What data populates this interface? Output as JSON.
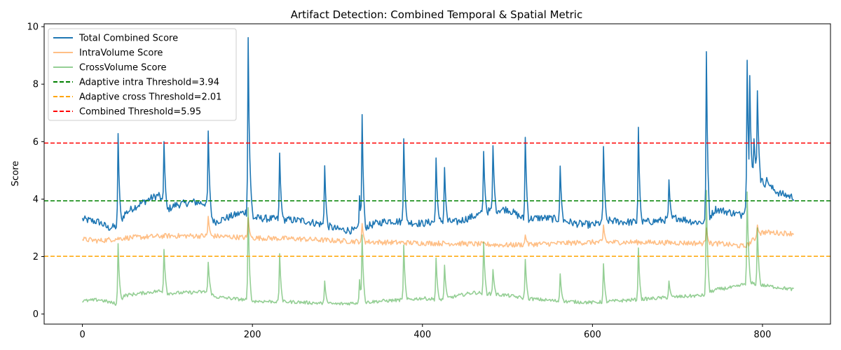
{
  "chart_data": {
    "type": "line",
    "title": "Artifact Detection: Combined Temporal & Spatial Metric",
    "xlabel": "",
    "ylabel": "Score",
    "xlim": [
      -45,
      880
    ],
    "ylim": [
      -0.35,
      10.1
    ],
    "xticks": [
      0,
      200,
      400,
      600,
      800
    ],
    "yticks": [
      0,
      2,
      4,
      6,
      8,
      10
    ],
    "n_points": 838,
    "legend_position": "top-left",
    "series": [
      {
        "name": "Total Combined Score",
        "color": "#1f77b4",
        "opacity": 1.0,
        "baseline_knots": [
          [
            0,
            3.3
          ],
          [
            20,
            3.2
          ],
          [
            30,
            3.0
          ],
          [
            42,
            3.05
          ],
          [
            50,
            3.5
          ],
          [
            60,
            3.7
          ],
          [
            75,
            3.95
          ],
          [
            90,
            4.15
          ],
          [
            98,
            3.6
          ],
          [
            110,
            3.8
          ],
          [
            130,
            3.9
          ],
          [
            145,
            3.85
          ],
          [
            155,
            3.2
          ],
          [
            170,
            3.35
          ],
          [
            185,
            3.5
          ],
          [
            192,
            3.55
          ],
          [
            200,
            3.35
          ],
          [
            230,
            3.3
          ],
          [
            260,
            3.25
          ],
          [
            285,
            3.1
          ],
          [
            300,
            2.95
          ],
          [
            320,
            2.9
          ],
          [
            330,
            3.0
          ],
          [
            345,
            3.15
          ],
          [
            360,
            3.25
          ],
          [
            380,
            3.2
          ],
          [
            400,
            3.15
          ],
          [
            420,
            3.25
          ],
          [
            440,
            3.2
          ],
          [
            460,
            3.4
          ],
          [
            470,
            3.5
          ],
          [
            480,
            3.6
          ],
          [
            500,
            3.65
          ],
          [
            520,
            3.3
          ],
          [
            540,
            3.35
          ],
          [
            560,
            3.3
          ],
          [
            580,
            3.15
          ],
          [
            600,
            3.1
          ],
          [
            620,
            3.25
          ],
          [
            640,
            3.2
          ],
          [
            660,
            3.2
          ],
          [
            680,
            3.25
          ],
          [
            700,
            3.35
          ],
          [
            720,
            3.2
          ],
          [
            733,
            3.2
          ],
          [
            745,
            3.65
          ],
          [
            760,
            3.55
          ],
          [
            775,
            3.45
          ],
          [
            783,
            3.9
          ],
          [
            790,
            5.0
          ],
          [
            800,
            4.6
          ],
          [
            810,
            4.4
          ],
          [
            820,
            4.2
          ],
          [
            838,
            4.05
          ]
        ],
        "noise": 0.13,
        "spikes": [
          [
            42,
            6.28
          ],
          [
            96,
            6.0
          ],
          [
            148,
            6.37
          ],
          [
            195,
            9.62
          ],
          [
            197,
            5.4
          ],
          [
            232,
            5.6
          ],
          [
            285,
            5.16
          ],
          [
            326,
            4.12
          ],
          [
            329,
            6.94
          ],
          [
            378,
            6.1
          ],
          [
            416,
            5.43
          ],
          [
            426,
            5.1
          ],
          [
            472,
            5.66
          ],
          [
            483,
            5.86
          ],
          [
            521,
            6.15
          ],
          [
            562,
            5.15
          ],
          [
            613,
            5.83
          ],
          [
            654,
            6.5
          ],
          [
            690,
            4.67
          ],
          [
            734,
            9.13
          ],
          [
            782,
            8.83
          ],
          [
            785,
            8.3
          ],
          [
            790,
            6.1
          ],
          [
            794,
            7.77
          ],
          [
            805,
            4.75
          ]
        ]
      },
      {
        "name": "IntraVolume Score",
        "color": "#ff7f0e",
        "opacity": 0.5,
        "baseline_knots": [
          [
            0,
            2.6
          ],
          [
            20,
            2.55
          ],
          [
            50,
            2.65
          ],
          [
            100,
            2.72
          ],
          [
            150,
            2.72
          ],
          [
            200,
            2.65
          ],
          [
            250,
            2.62
          ],
          [
            300,
            2.55
          ],
          [
            350,
            2.5
          ],
          [
            400,
            2.47
          ],
          [
            450,
            2.45
          ],
          [
            500,
            2.4
          ],
          [
            550,
            2.45
          ],
          [
            600,
            2.5
          ],
          [
            650,
            2.5
          ],
          [
            700,
            2.48
          ],
          [
            750,
            2.45
          ],
          [
            780,
            2.35
          ],
          [
            790,
            2.6
          ],
          [
            800,
            2.85
          ],
          [
            838,
            2.8
          ]
        ],
        "noise": 0.09,
        "spikes": [
          [
            148,
            3.4
          ],
          [
            195,
            3.35
          ],
          [
            329,
            3.15
          ],
          [
            521,
            2.75
          ],
          [
            613,
            3.1
          ],
          [
            734,
            3.0
          ],
          [
            782,
            2.1
          ],
          [
            794,
            3.1
          ]
        ]
      },
      {
        "name": "CrossVolume Score",
        "color": "#2ca02c",
        "opacity": 0.5,
        "baseline_knots": [
          [
            0,
            0.45
          ],
          [
            20,
            0.5
          ],
          [
            40,
            0.35
          ],
          [
            50,
            0.65
          ],
          [
            90,
            0.8
          ],
          [
            100,
            0.72
          ],
          [
            150,
            0.78
          ],
          [
            155,
            0.6
          ],
          [
            190,
            0.5
          ],
          [
            200,
            0.45
          ],
          [
            250,
            0.42
          ],
          [
            300,
            0.35
          ],
          [
            330,
            0.4
          ],
          [
            350,
            0.45
          ],
          [
            380,
            0.5
          ],
          [
            400,
            0.55
          ],
          [
            420,
            0.5
          ],
          [
            460,
            0.75
          ],
          [
            480,
            0.7
          ],
          [
            500,
            0.65
          ],
          [
            520,
            0.55
          ],
          [
            560,
            0.45
          ],
          [
            600,
            0.4
          ],
          [
            650,
            0.5
          ],
          [
            700,
            0.6
          ],
          [
            730,
            0.65
          ],
          [
            745,
            0.85
          ],
          [
            770,
            0.95
          ],
          [
            783,
            1.1
          ],
          [
            800,
            1.0
          ],
          [
            838,
            0.85
          ]
        ],
        "noise": 0.06,
        "spikes": [
          [
            42,
            2.45
          ],
          [
            96,
            2.25
          ],
          [
            148,
            1.8
          ],
          [
            195,
            3.7
          ],
          [
            232,
            2.1
          ],
          [
            285,
            1.15
          ],
          [
            326,
            1.2
          ],
          [
            329,
            2.75
          ],
          [
            378,
            2.4
          ],
          [
            416,
            1.95
          ],
          [
            426,
            1.7
          ],
          [
            472,
            2.5
          ],
          [
            483,
            1.55
          ],
          [
            521,
            1.9
          ],
          [
            562,
            1.4
          ],
          [
            613,
            1.75
          ],
          [
            654,
            2.3
          ],
          [
            690,
            1.15
          ],
          [
            734,
            4.3
          ],
          [
            782,
            4.25
          ],
          [
            794,
            3.0
          ]
        ]
      }
    ],
    "thresholds": [
      {
        "name": "Adaptive intra Threshold=3.94",
        "value": 3.94,
        "color": "#008000",
        "style": "dashed"
      },
      {
        "name": "Adaptive cross Threshold=2.01",
        "value": 2.01,
        "color": "#ffa500",
        "style": "dashed"
      },
      {
        "name": "Combined Threshold=5.95",
        "value": 5.95,
        "color": "#ff0000",
        "style": "dashed"
      }
    ]
  }
}
